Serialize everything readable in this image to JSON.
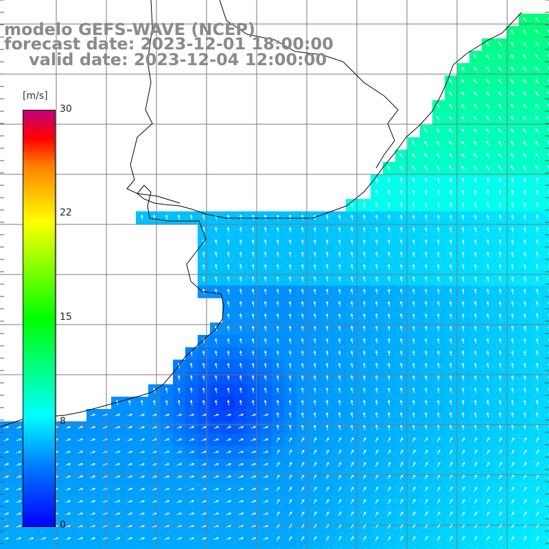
{
  "title": {
    "line1": "modelo GEFS-WAVE (NCEP)",
    "line2": "forecast date: 2023-12-01 18:00:00",
    "line3": "valid date: 2023-12-04 12:00:00"
  },
  "colorbar": {
    "unit": "[m/s]",
    "ticks": [
      "30",
      "22",
      "15",
      "8",
      "0"
    ],
    "tick_values": [
      30,
      22,
      15,
      8,
      0
    ],
    "range": [
      0,
      30
    ],
    "colors": [
      "#0000ff",
      "#0080ff",
      "#00ffff",
      "#00ff00",
      "#ffff00",
      "#ff8000",
      "#ff0000",
      "#c0007a"
    ]
  },
  "map": {
    "variable": "wind speed with direction arrows",
    "land_color": "#ffffff",
    "grid": true,
    "arrow_color": "#ffffff",
    "coastline_color": "#000000",
    "grid_color": "#7a7a7a"
  }
}
